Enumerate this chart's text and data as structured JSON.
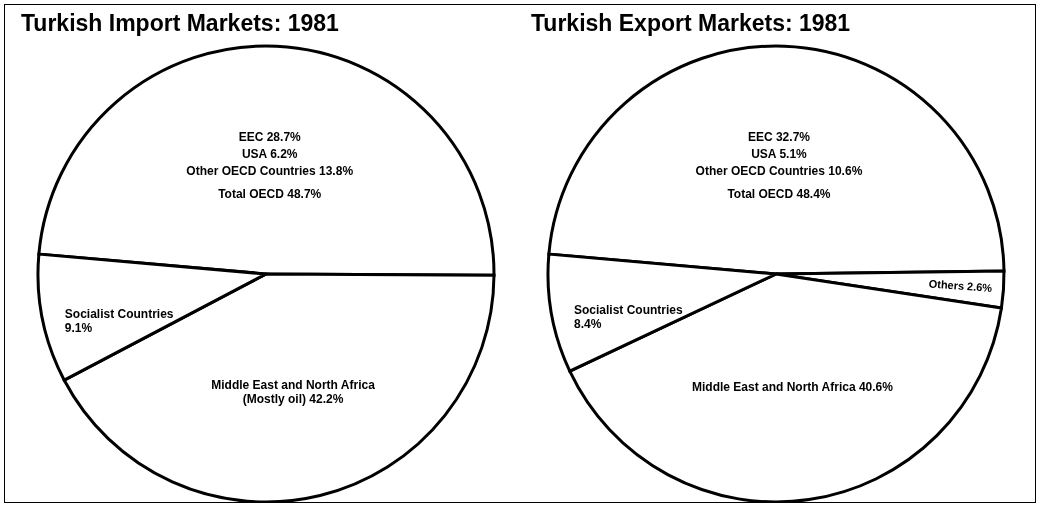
{
  "chart_data": [
    {
      "type": "pie",
      "title": "Turkish Import Markets: 1981",
      "categories": [
        "Total OECD",
        "Middle East and North Africa\n(Mostly oil)",
        "Socialist Countries"
      ],
      "values": [
        48.7,
        42.2,
        9.1
      ],
      "value_labels": [
        "48.7%",
        "42.2%",
        "9.1%"
      ],
      "colors": [
        "#ffffff",
        "#ffffff",
        "#ffffff"
      ],
      "annotations": [
        "EEC 28.7%",
        "USA 6.2%",
        "Other OECD Countries 13.8%"
      ]
    },
    {
      "type": "pie",
      "title": "Turkish Export Markets: 1981",
      "categories": [
        "Total OECD",
        "Others",
        "Middle East and North Africa",
        "Socialist Countries"
      ],
      "values": [
        48.4,
        2.6,
        40.6,
        8.4
      ],
      "value_labels": [
        "48.4%",
        "2.6%",
        "40.6%",
        "8.4%"
      ],
      "colors": [
        "#ffffff",
        "#ffffff",
        "#ffffff",
        "#ffffff"
      ],
      "annotations": [
        "EEC 32.7%",
        "USA 5.1%",
        "Other OECD Countries 10.6%"
      ]
    }
  ]
}
